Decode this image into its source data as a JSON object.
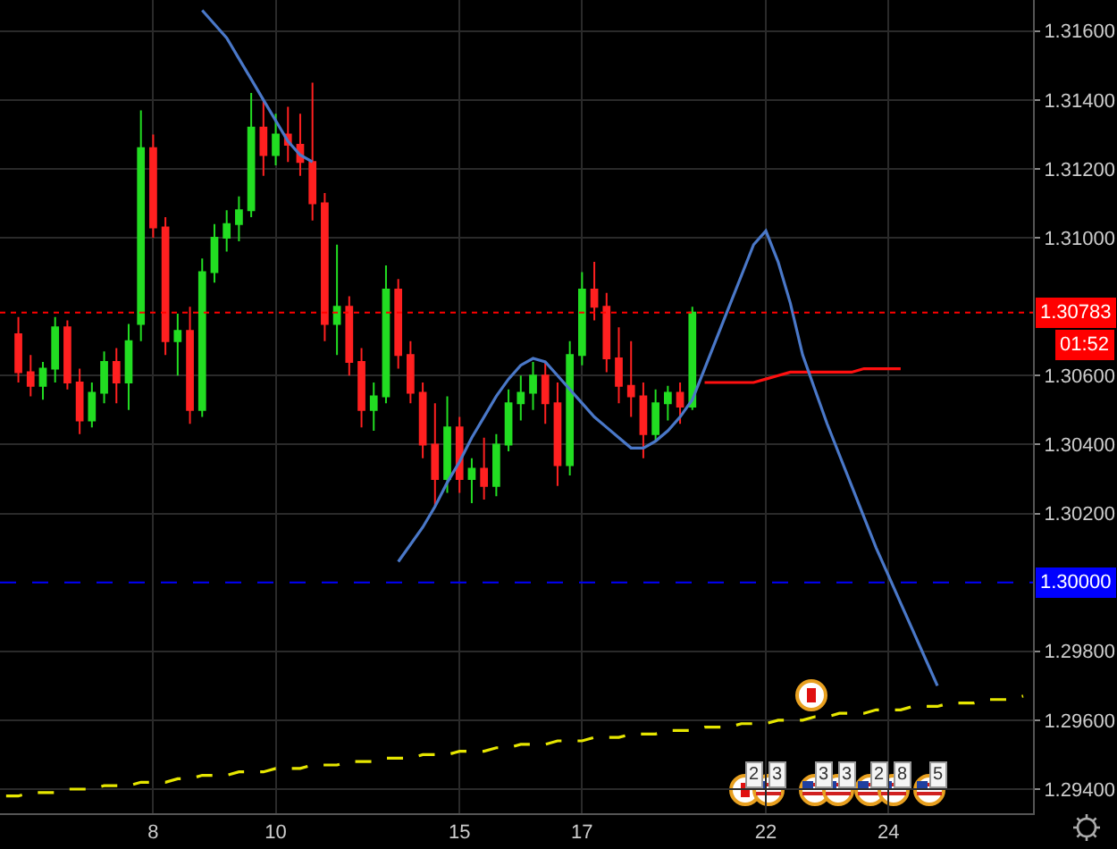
{
  "chart_data": {
    "type": "candlestick",
    "categories": [
      null,
      null,
      null,
      null,
      null,
      null,
      null,
      null,
      null,
      null,
      null,
      null,
      "8",
      null,
      null,
      null,
      null,
      null,
      null,
      null,
      null,
      null,
      "10",
      null,
      null,
      null,
      null,
      null,
      null,
      null,
      null,
      null,
      null,
      null,
      null,
      null,
      null,
      "15",
      null,
      null,
      null,
      null,
      null,
      null,
      null,
      null,
      null,
      "17",
      null,
      null,
      null,
      null,
      null,
      null,
      null,
      null,
      null,
      null,
      null,
      null,
      null,
      null,
      "22",
      null,
      null,
      null,
      null,
      null,
      null,
      null,
      null,
      null,
      "24",
      null,
      null,
      null,
      null,
      null,
      null,
      null,
      null,
      null,
      null,
      null
    ],
    "ylim": [
      1.2933,
      1.3169
    ],
    "yticks": [
      {
        "value": 1.294,
        "label": "1.29400"
      },
      {
        "value": 1.296,
        "label": "1.29600"
      },
      {
        "value": 1.298,
        "label": "1.29800"
      },
      {
        "value": 1.302,
        "label": "1.30200"
      },
      {
        "value": 1.304,
        "label": "1.30400"
      },
      {
        "value": 1.306,
        "label": "1.30600"
      },
      {
        "value": 1.31,
        "label": "1.31000"
      },
      {
        "value": 1.312,
        "label": "1.31200"
      },
      {
        "value": 1.314,
        "label": "1.31400"
      },
      {
        "value": 1.316,
        "label": "1.31600"
      }
    ],
    "grid": true,
    "marker": "none",
    "series": [
      {
        "type": "candlestick",
        "ohlc": [
          null,
          [
            1.3072,
            1.3077,
            1.3058,
            1.3061
          ],
          [
            1.3061,
            1.3066,
            1.3054,
            1.3057
          ],
          [
            1.3057,
            1.3064,
            1.3053,
            1.3062
          ],
          [
            1.3062,
            1.3077,
            1.3058,
            1.3074
          ],
          [
            1.3074,
            1.3076,
            1.3056,
            1.3058
          ],
          [
            1.3058,
            1.3062,
            1.3043,
            1.3047
          ],
          [
            1.3047,
            1.3058,
            1.3045,
            1.3055
          ],
          [
            1.3055,
            1.3067,
            1.3052,
            1.3064
          ],
          [
            1.3064,
            1.3068,
            1.3052,
            1.3058
          ],
          [
            1.3058,
            1.3075,
            1.305,
            1.307
          ],
          [
            1.3075,
            1.3137,
            1.307,
            1.3126
          ],
          [
            1.3126,
            1.313,
            1.31,
            1.3103
          ],
          [
            1.3103,
            1.3106,
            1.3066,
            1.307
          ],
          [
            1.307,
            1.3078,
            1.306,
            1.3073
          ],
          [
            1.3073,
            1.308,
            1.3046,
            1.305
          ],
          [
            1.305,
            1.3094,
            1.3048,
            1.309
          ],
          [
            1.309,
            1.3104,
            1.3087,
            1.31
          ],
          [
            1.31,
            1.3108,
            1.3096,
            1.3104
          ],
          [
            1.3104,
            1.3112,
            1.3099,
            1.3108
          ],
          [
            1.3108,
            1.3142,
            1.3106,
            1.3132
          ],
          [
            1.3132,
            1.314,
            1.3118,
            1.3124
          ],
          [
            1.3124,
            1.3136,
            1.3121,
            1.313
          ],
          [
            1.313,
            1.3138,
            1.3122,
            1.3127
          ],
          [
            1.3127,
            1.3136,
            1.3118,
            1.3122
          ],
          [
            1.3122,
            1.3145,
            1.3105,
            1.311
          ],
          [
            1.311,
            1.3113,
            1.307,
            1.3075
          ],
          [
            1.3075,
            1.3098,
            1.3066,
            1.308
          ],
          [
            1.308,
            1.3083,
            1.306,
            1.3064
          ],
          [
            1.3064,
            1.3068,
            1.3045,
            1.305
          ],
          [
            1.305,
            1.3058,
            1.3044,
            1.3054
          ],
          [
            1.3054,
            1.3092,
            1.3052,
            1.3085
          ],
          [
            1.3085,
            1.3088,
            1.3062,
            1.3066
          ],
          [
            1.3066,
            1.307,
            1.3052,
            1.3055
          ],
          [
            1.3055,
            1.3058,
            1.3036,
            1.304
          ],
          [
            1.304,
            1.3052,
            1.3022,
            1.303
          ],
          [
            1.303,
            1.3054,
            1.3026,
            1.3045
          ],
          [
            1.3045,
            1.3048,
            1.3026,
            1.303
          ],
          [
            1.303,
            1.3036,
            1.3023,
            1.3033
          ],
          [
            1.3033,
            1.3042,
            1.3024,
            1.3028
          ],
          [
            1.3028,
            1.3043,
            1.3025,
            1.304
          ],
          [
            1.304,
            1.3056,
            1.3038,
            1.3052
          ],
          [
            1.3052,
            1.306,
            1.3047,
            1.3055
          ],
          [
            1.3055,
            1.3064,
            1.305,
            1.306
          ],
          [
            1.306,
            1.3064,
            1.3046,
            1.3052
          ],
          [
            1.3052,
            1.3058,
            1.3028,
            1.3034
          ],
          [
            1.3034,
            1.307,
            1.3031,
            1.3066
          ],
          [
            1.3066,
            1.309,
            1.3063,
            1.3085
          ],
          [
            1.3085,
            1.3093,
            1.3076,
            1.308
          ],
          [
            1.308,
            1.3084,
            1.3061,
            1.3065
          ],
          [
            1.3065,
            1.3074,
            1.3052,
            1.3057
          ],
          [
            1.3057,
            1.307,
            1.3048,
            1.3054
          ],
          [
            1.3054,
            1.3058,
            1.3036,
            1.3043
          ],
          [
            1.3043,
            1.3056,
            1.3041,
            1.3052
          ],
          [
            1.3052,
            1.3057,
            1.3047,
            1.3055
          ],
          [
            1.3055,
            1.3058,
            1.3046,
            1.3051
          ],
          [
            1.3051,
            1.308,
            1.305,
            1.30783
          ],
          null,
          null,
          null,
          null,
          null,
          null,
          null,
          null,
          null,
          null,
          null,
          null,
          null,
          null,
          null,
          null,
          null,
          null,
          null,
          null,
          null,
          null,
          null,
          null,
          null,
          null,
          null
        ],
        "colors": [
          null,
          "#ff2020",
          "#ff2020",
          "#22dd22",
          "#22dd22",
          "#ff2020",
          "#ff2020",
          "#22dd22",
          "#22dd22",
          "#ff2020",
          "#22dd22",
          "#22dd22",
          "#ff2020",
          "#ff2020",
          "#22dd22",
          "#ff2020",
          "#22dd22",
          "#22dd22",
          "#22dd22",
          "#22dd22",
          "#22dd22",
          "#ff2020",
          "#22dd22",
          "#ff2020",
          "#ff2020",
          "#ff2020",
          "#ff2020",
          "#22dd22",
          "#ff2020",
          "#ff2020",
          "#22dd22",
          "#22dd22",
          "#ff2020",
          "#ff2020",
          "#ff2020",
          "#ff2020",
          "#22dd22",
          "#ff2020",
          "#22dd22",
          "#ff2020",
          "#22dd22",
          "#22dd22",
          "#22dd22",
          "#22dd22",
          "#ff2020",
          "#ff2020",
          "#22dd22",
          "#22dd22",
          "#ff2020",
          "#ff2020",
          "#ff2020",
          "#ff2020",
          "#ff2020",
          "#22dd22",
          "#22dd22",
          "#ff2020",
          "#22dd22",
          null,
          null,
          null,
          null,
          null,
          null,
          null,
          null,
          null,
          null,
          null,
          null,
          null,
          null,
          null,
          null,
          null,
          null,
          null,
          null,
          null,
          null,
          null,
          null,
          null,
          null,
          null
        ]
      },
      {
        "type": "line",
        "color": "#ff1010",
        "line_style": "solid",
        "values": [
          null,
          null,
          null,
          null,
          null,
          null,
          null,
          null,
          null,
          null,
          null,
          null,
          null,
          null,
          null,
          null,
          null,
          null,
          null,
          null,
          null,
          null,
          null,
          null,
          null,
          null,
          null,
          null,
          null,
          null,
          null,
          null,
          null,
          null,
          null,
          null,
          null,
          null,
          null,
          null,
          null,
          null,
          null,
          null,
          null,
          null,
          null,
          null,
          null,
          null,
          null,
          null,
          null,
          null,
          null,
          null,
          null,
          1.3058,
          1.3058,
          1.3058,
          1.3058,
          1.3058,
          1.3059,
          1.306,
          1.3061,
          1.3061,
          1.3061,
          1.3061,
          1.3061,
          1.3061,
          1.3062,
          1.3062,
          1.3062,
          1.3062,
          null,
          null,
          null,
          null,
          null,
          null,
          null,
          null,
          null,
          null
        ]
      },
      {
        "type": "line",
        "color": "#4a78c8",
        "line_style": "solid",
        "values": [
          null,
          null,
          null,
          null,
          null,
          null,
          null,
          null,
          null,
          null,
          null,
          null,
          null,
          null,
          null,
          null,
          1.3166,
          1.3162,
          1.3158,
          1.3152,
          1.3146,
          1.314,
          1.3134,
          1.3128,
          1.3124,
          1.3122,
          null,
          null,
          null,
          null,
          null,
          null,
          null,
          null,
          null,
          null,
          null,
          null,
          null,
          null,
          null,
          null,
          null,
          null,
          null,
          null,
          null,
          null,
          null,
          null,
          null,
          null,
          null,
          null,
          null,
          null,
          null,
          null,
          null,
          null,
          null,
          null,
          null,
          null,
          null,
          null,
          null,
          null,
          null,
          null,
          null,
          null,
          null,
          null,
          null,
          null,
          null,
          null,
          null,
          null,
          null,
          null,
          null,
          null
        ]
      },
      {
        "type": "line",
        "color": "#4a78c8",
        "line_style": "solid",
        "values": [
          null,
          null,
          null,
          null,
          null,
          null,
          null,
          null,
          null,
          null,
          null,
          null,
          null,
          null,
          null,
          null,
          null,
          null,
          null,
          null,
          null,
          null,
          null,
          null,
          null,
          null,
          null,
          null,
          null,
          null,
          null,
          null,
          1.3006,
          1.3011,
          1.3016,
          1.3022,
          1.3029,
          1.3035,
          1.3042,
          1.3048,
          1.3054,
          1.3059,
          1.3063,
          1.3065,
          1.3064,
          1.306,
          1.3056,
          1.3052,
          1.3048,
          1.3045,
          1.3042,
          1.3039,
          1.3039,
          1.3041,
          1.3044,
          1.3048,
          1.3053,
          1.3062,
          1.3071,
          1.308,
          1.3089,
          1.3098,
          1.3102,
          1.3093,
          1.3081,
          1.3066,
          1.3056,
          1.3046,
          1.3037,
          1.3028,
          1.3019,
          1.301,
          1.3002,
          1.2994,
          1.2986,
          1.2978,
          1.297,
          null,
          null,
          null,
          null,
          null,
          null,
          null
        ]
      },
      {
        "type": "line",
        "color": "#e6e600",
        "line_style": "dashed",
        "values": [
          1.2938,
          1.2938,
          1.2939,
          1.2939,
          1.2939,
          1.294,
          1.294,
          1.294,
          1.2941,
          1.2941,
          1.2941,
          1.2942,
          1.2942,
          1.2942,
          1.2943,
          1.2943,
          1.2944,
          1.2944,
          1.2944,
          1.2945,
          1.2945,
          1.2945,
          1.2946,
          1.2946,
          1.2946,
          1.2947,
          1.2947,
          1.2947,
          1.2948,
          1.2948,
          1.2948,
          1.2949,
          1.2949,
          1.2949,
          1.295,
          1.295,
          1.295,
          1.2951,
          1.2951,
          1.2951,
          1.2952,
          1.2952,
          1.2953,
          1.2953,
          1.2953,
          1.2954,
          1.2954,
          1.2954,
          1.2955,
          1.2955,
          1.2955,
          1.2956,
          1.2956,
          1.2956,
          1.2957,
          1.2957,
          1.2957,
          1.2958,
          1.2958,
          1.2958,
          1.2959,
          1.2959,
          1.2959,
          1.296,
          1.296,
          1.296,
          1.2961,
          1.2961,
          1.2962,
          1.2962,
          1.2962,
          1.2963,
          1.2963,
          1.2963,
          1.2964,
          1.2964,
          1.2964,
          1.2965,
          1.2965,
          1.2965,
          1.2966,
          1.2966,
          1.2966,
          1.2967
        ]
      }
    ],
    "ref_lines": [
      {
        "axis": "y",
        "value": 1.30783,
        "label": "1.30783",
        "color": "#ff0000",
        "line_style": "dotted"
      },
      {
        "axis": "y",
        "value": 1.3,
        "label": "1.30000",
        "color": "#0000ff",
        "line_style": "dashed"
      }
    ],
    "annotations": [
      "01:52",
      "2",
      "3",
      "3",
      "3",
      "2",
      "8",
      "5"
    ]
  }
}
